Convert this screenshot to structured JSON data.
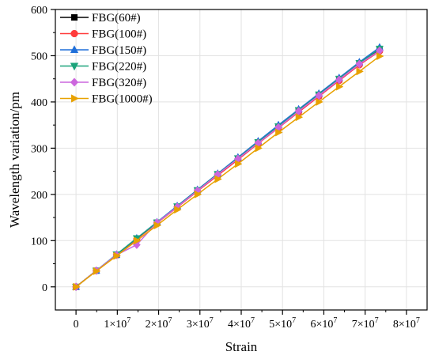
{
  "chart_data": {
    "type": "line",
    "xlabel": "Strain",
    "ylabel": "Wavelength variation/pm",
    "xlim": [
      -5000000,
      85000000
    ],
    "ylim": [
      -50,
      600
    ],
    "x_ticks": [
      0,
      10000000,
      20000000,
      30000000,
      40000000,
      50000000,
      60000000,
      70000000,
      80000000
    ],
    "x_tick_labels": [
      {
        "mantissa": "0",
        "exp": ""
      },
      {
        "mantissa": "1×10",
        "exp": "7"
      },
      {
        "mantissa": "2×10",
        "exp": "7"
      },
      {
        "mantissa": "3×10",
        "exp": "7"
      },
      {
        "mantissa": "4×10",
        "exp": "7"
      },
      {
        "mantissa": "5×10",
        "exp": "7"
      },
      {
        "mantissa": "6×10",
        "exp": "7"
      },
      {
        "mantissa": "7×10",
        "exp": "7"
      },
      {
        "mantissa": "8×10",
        "exp": "7"
      }
    ],
    "y_ticks": [
      0,
      100,
      200,
      300,
      400,
      500,
      600
    ],
    "y_tick_labels": [
      "0",
      "100",
      "200",
      "300",
      "400",
      "500",
      "600"
    ],
    "grid": true,
    "legend_position": "top-left",
    "x": [
      0,
      4900000,
      9800000,
      14700000,
      19600000,
      24500000,
      29400000,
      34300000,
      39200000,
      44100000,
      49000000,
      53900000,
      58800000,
      63700000,
      68600000,
      73500000
    ],
    "series": [
      {
        "name": "FBG(60#)",
        "color": "#000000",
        "marker": "square",
        "values": [
          0,
          35,
          69,
          104,
          139,
          173,
          208,
          242,
          277,
          311,
          345,
          380,
          414,
          448,
          483,
          513
        ]
      },
      {
        "name": "FBG(100#)",
        "color": "#ff3b3b",
        "marker": "circle",
        "values": [
          0,
          35,
          69,
          103,
          138,
          172,
          207,
          241,
          275,
          310,
          344,
          378,
          412,
          446,
          480,
          510
        ]
      },
      {
        "name": "FBG(150#)",
        "color": "#1f6fd9",
        "marker": "triangle-up",
        "values": [
          0,
          35,
          70,
          105,
          140,
          175,
          210,
          245,
          280,
          315,
          350,
          384,
          418,
          452,
          486,
          518
        ]
      },
      {
        "name": "FBG(220#)",
        "color": "#1aa37a",
        "marker": "triangle-down",
        "values": [
          0,
          35,
          70,
          105,
          139,
          174,
          209,
          244,
          278,
          313,
          347,
          382,
          416,
          450,
          484,
          515
        ]
      },
      {
        "name": "FBG(320#)",
        "color": "#cc66dd",
        "marker": "diamond",
        "values": [
          0,
          35,
          69,
          91,
          139,
          173,
          208,
          243,
          277,
          311,
          345,
          380,
          414,
          448,
          482,
          511
        ]
      },
      {
        "name": "FBG(1000#)",
        "color": "#e8a100",
        "marker": "triangle-right",
        "values": [
          0,
          34,
          67,
          100,
          133,
          167,
          200,
          233,
          266,
          300,
          334,
          367,
          400,
          433,
          466,
          499
        ]
      }
    ]
  }
}
